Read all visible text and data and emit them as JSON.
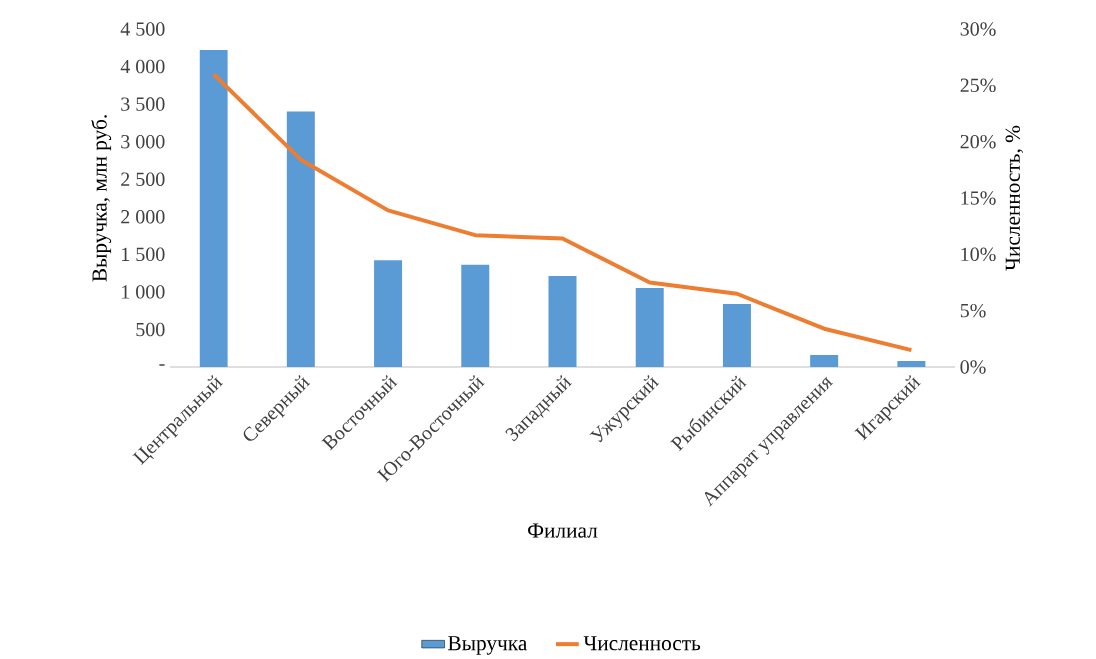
{
  "chart_data": {
    "type": "bar",
    "xlabel": "Филиал",
    "ylabel": "Выручка, млн руб.",
    "y2label": "Численность, %",
    "categories": [
      "Центральный",
      "Северный",
      "Восточный",
      "Юго-Восточный",
      "Западный",
      "Ужурский",
      "Рыбинский",
      "Аппарат управления",
      "Игарский"
    ],
    "series": [
      {
        "name": "Выручка",
        "color": "#5b9bd5",
        "values": [
          4220,
          3400,
          1420,
          1360,
          1210,
          1050,
          840,
          160,
          80
        ]
      },
      {
        "name": "Численность",
        "type": "line",
        "axis": "y2",
        "color": "#ed7d31",
        "values": [
          26.0,
          18.4,
          13.9,
          11.7,
          11.4,
          7.5,
          6.5,
          3.4,
          1.5
        ]
      }
    ],
    "ylim": [
      0,
      4500
    ],
    "yticks": [
      {
        "value": 0,
        "label": "-"
      },
      500,
      {
        "value": 1000,
        "label": "1 000"
      },
      {
        "value": 1500,
        "label": "1 500"
      },
      {
        "value": 2000,
        "label": "2 000"
      },
      {
        "value": 2500,
        "label": "2 500"
      },
      {
        "value": 3000,
        "label": "3 000"
      },
      {
        "value": 3500,
        "label": "3 500"
      },
      {
        "value": 4000,
        "label": "4 000"
      },
      {
        "value": 4500,
        "label": "4 500"
      }
    ],
    "y2lim": [
      0,
      30
    ],
    "y2ticks": [
      {
        "value": 0,
        "label": "0%"
      },
      {
        "value": 5,
        "label": "5%"
      },
      {
        "value": 10,
        "label": "10%"
      },
      {
        "value": 15,
        "label": "15%"
      },
      {
        "value": 20,
        "label": "20%"
      },
      {
        "value": 25,
        "label": "25%"
      },
      {
        "value": 30,
        "label": "30%"
      }
    ],
    "legend": "bottom",
    "grid": false,
    "marker": "none"
  }
}
